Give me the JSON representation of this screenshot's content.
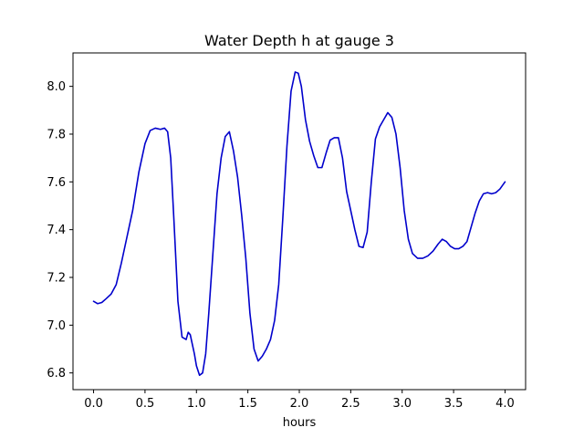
{
  "chart_data": {
    "type": "line",
    "title": "Water Depth h at gauge 3",
    "xlabel": "hours",
    "ylabel": "",
    "xlim": [
      -0.2,
      4.2
    ],
    "ylim": [
      6.73,
      8.14
    ],
    "xticks": [
      0.0,
      0.5,
      1.0,
      1.5,
      2.0,
      2.5,
      3.0,
      3.5,
      4.0
    ],
    "xtick_labels": [
      "0.0",
      "0.5",
      "1.0",
      "1.5",
      "2.0",
      "2.5",
      "3.0",
      "3.5",
      "4.0"
    ],
    "yticks": [
      6.8,
      7.0,
      7.2,
      7.4,
      7.6,
      7.8,
      8.0
    ],
    "ytick_labels": [
      "6.8",
      "7.0",
      "7.2",
      "7.4",
      "7.6",
      "7.8",
      "8.0"
    ],
    "grid": false,
    "series": [
      {
        "name": "",
        "color": "#0000cc",
        "x": [
          0.0,
          0.04,
          0.08,
          0.12,
          0.17,
          0.22,
          0.27,
          0.32,
          0.38,
          0.44,
          0.5,
          0.55,
          0.6,
          0.65,
          0.69,
          0.72,
          0.75,
          0.78,
          0.82,
          0.86,
          0.9,
          0.92,
          0.94,
          0.96,
          0.98,
          1.0,
          1.03,
          1.06,
          1.09,
          1.12,
          1.16,
          1.2,
          1.24,
          1.28,
          1.32,
          1.36,
          1.4,
          1.44,
          1.48,
          1.52,
          1.56,
          1.6,
          1.64,
          1.68,
          1.72,
          1.76,
          1.8,
          1.84,
          1.88,
          1.92,
          1.96,
          1.99,
          2.02,
          2.06,
          2.1,
          2.14,
          2.18,
          2.22,
          2.26,
          2.3,
          2.34,
          2.38,
          2.42,
          2.46,
          2.5,
          2.54,
          2.58,
          2.62,
          2.66,
          2.7,
          2.74,
          2.78,
          2.82,
          2.86,
          2.9,
          2.94,
          2.98,
          3.02,
          3.06,
          3.1,
          3.15,
          3.2,
          3.25,
          3.3,
          3.35,
          3.39,
          3.43,
          3.47,
          3.51,
          3.55,
          3.59,
          3.63,
          3.67,
          3.71,
          3.75,
          3.79,
          3.83,
          3.87,
          3.91,
          3.95,
          4.0
        ],
        "y": [
          7.1,
          7.09,
          7.095,
          7.11,
          7.13,
          7.17,
          7.26,
          7.36,
          7.48,
          7.64,
          7.76,
          7.815,
          7.825,
          7.82,
          7.825,
          7.81,
          7.7,
          7.45,
          7.1,
          6.95,
          6.94,
          6.97,
          6.96,
          6.92,
          6.88,
          6.83,
          6.79,
          6.8,
          6.88,
          7.05,
          7.3,
          7.55,
          7.7,
          7.79,
          7.81,
          7.73,
          7.62,
          7.46,
          7.28,
          7.05,
          6.9,
          6.85,
          6.87,
          6.9,
          6.94,
          7.02,
          7.17,
          7.45,
          7.75,
          7.98,
          8.06,
          8.055,
          8.0,
          7.86,
          7.77,
          7.71,
          7.66,
          7.66,
          7.72,
          7.775,
          7.785,
          7.785,
          7.7,
          7.56,
          7.48,
          7.4,
          7.33,
          7.325,
          7.39,
          7.6,
          7.78,
          7.83,
          7.86,
          7.89,
          7.87,
          7.8,
          7.66,
          7.48,
          7.36,
          7.3,
          7.28,
          7.28,
          7.29,
          7.31,
          7.34,
          7.36,
          7.35,
          7.33,
          7.32,
          7.32,
          7.33,
          7.35,
          7.41,
          7.47,
          7.52,
          7.55,
          7.555,
          7.55,
          7.555,
          7.57,
          7.6
        ]
      }
    ]
  }
}
